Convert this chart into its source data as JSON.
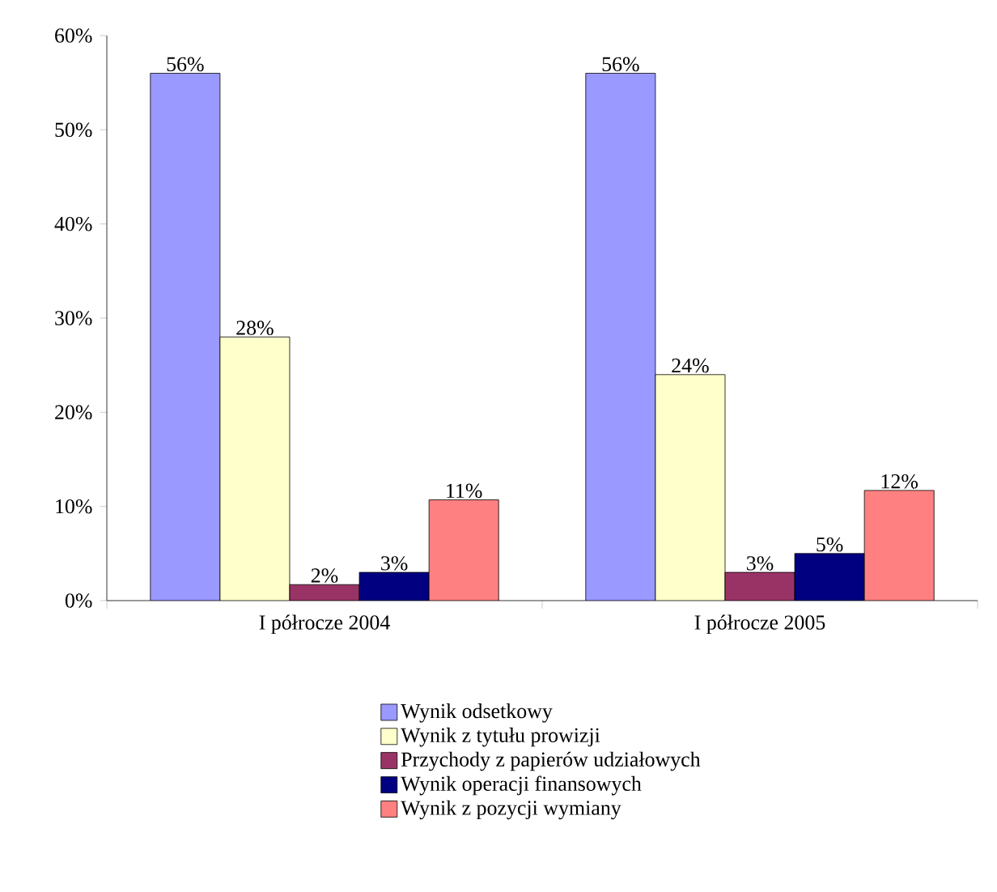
{
  "chart_data": {
    "type": "bar",
    "categories": [
      "I półrocze 2004",
      "I półrocze 2005"
    ],
    "series": [
      {
        "name": "Wynik odsetkowy",
        "color": "#9999ff",
        "values": [
          56,
          56
        ],
        "value_labels": [
          "56%",
          "56%"
        ]
      },
      {
        "name": "Wynik z tytułu prowizji",
        "color": "#ffffcc",
        "values": [
          28,
          24
        ],
        "value_labels": [
          "28%",
          "24%"
        ]
      },
      {
        "name": "Przychody z papierów udziałowych",
        "color": "#993366",
        "values": [
          1.7,
          3
        ],
        "value_labels": [
          "2%",
          "3%"
        ]
      },
      {
        "name": "Wynik operacji finansowych",
        "color": "#000080",
        "values": [
          3,
          5
        ],
        "value_labels": [
          "3%",
          "5%"
        ]
      },
      {
        "name": "Wynik z pozycji wymiany",
        "color": "#ff8080",
        "values": [
          10.7,
          11.7
        ],
        "value_labels": [
          "11%",
          "12%"
        ]
      }
    ],
    "ylim": [
      0,
      60
    ],
    "yticks": [
      {
        "value": 0,
        "label": "0%"
      },
      {
        "value": 10,
        "label": "10%"
      },
      {
        "value": 20,
        "label": "20%"
      },
      {
        "value": 30,
        "label": "30%"
      },
      {
        "value": 40,
        "label": "40%"
      },
      {
        "value": 50,
        "label": "50%"
      },
      {
        "value": 60,
        "label": "60%"
      }
    ],
    "grid": false,
    "legend": "bottom"
  }
}
